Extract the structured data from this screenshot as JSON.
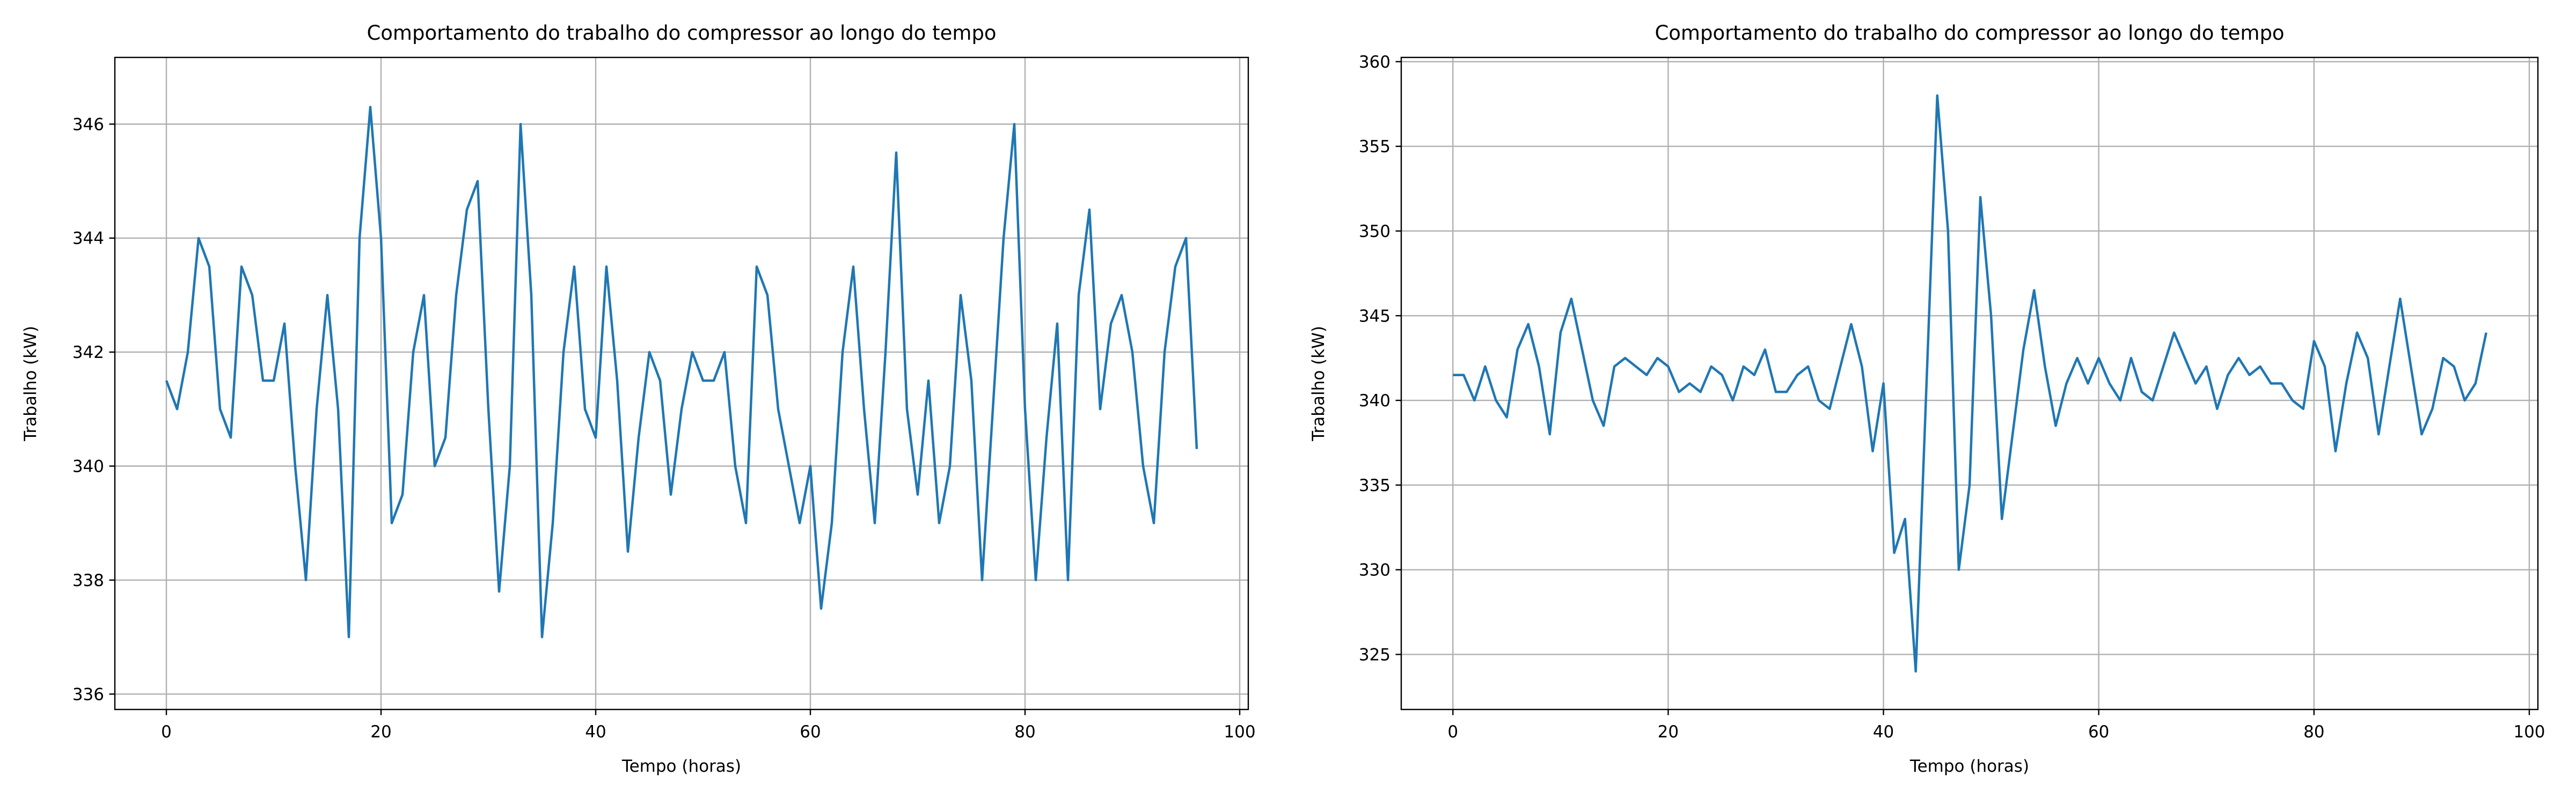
{
  "chart_data": [
    {
      "type": "line",
      "title": "Comportamento do trabalho do compressor ao longo do tempo",
      "xlabel": "Tempo (horas)",
      "ylabel": "Trabalho (kW)",
      "color": "#1f77b4",
      "grid": true,
      "xlim": [
        -4.8,
        100.8
      ],
      "ylim": [
        335.73,
        347.17
      ],
      "xticks": [
        0,
        20,
        40,
        60,
        80,
        100
      ],
      "yticks": [
        336,
        338,
        340,
        342,
        344,
        346
      ],
      "x": [
        0,
        1,
        2,
        3,
        4,
        5,
        6,
        7,
        8,
        9,
        10,
        11,
        12,
        13,
        14,
        15,
        16,
        17,
        18,
        19,
        20,
        21,
        22,
        23,
        24,
        25,
        26,
        27,
        28,
        29,
        30,
        31,
        32,
        33,
        34,
        35,
        36,
        37,
        38,
        39,
        40,
        41,
        42,
        43,
        44,
        45,
        46,
        47,
        48,
        49,
        50,
        51,
        52,
        53,
        54,
        55,
        56,
        57,
        58,
        59,
        60,
        61,
        62,
        63,
        64,
        65,
        66,
        67,
        68,
        69,
        70,
        71,
        72,
        73,
        74,
        75,
        76,
        77,
        78,
        79,
        80,
        81,
        82,
        83,
        84,
        85,
        86,
        87,
        88,
        89,
        90,
        91,
        92,
        93,
        94,
        95,
        96
      ],
      "values": [
        341.5,
        341,
        342,
        344,
        343.5,
        341,
        340.5,
        343.5,
        343,
        341.5,
        341.5,
        342.5,
        340,
        338,
        341,
        343,
        341,
        337,
        344,
        346.3,
        344,
        339,
        339.5,
        342,
        343,
        340,
        340.5,
        343,
        344.5,
        345,
        341,
        337.8,
        340,
        346,
        343,
        337,
        339,
        342,
        343.5,
        341,
        340.5,
        343.5,
        341.5,
        338.5,
        340.5,
        342,
        341.5,
        339.5,
        341,
        342,
        341.5,
        341.5,
        342,
        340,
        339,
        343.5,
        343,
        341,
        340,
        339,
        340,
        337.5,
        339,
        342,
        343.5,
        341,
        339,
        342,
        345.5,
        341,
        339.5,
        341.5,
        339,
        340,
        343,
        341.5,
        338,
        341,
        344,
        346,
        341,
        338,
        340.5,
        342.5,
        338,
        343,
        344.5,
        341,
        342.5,
        343,
        342,
        340,
        339,
        342,
        343.5,
        344,
        340.3
      ]
    },
    {
      "type": "line",
      "title": "Comportamento do trabalho do compressor ao longo do tempo",
      "xlabel": "Tempo (horas)",
      "ylabel": "Trabalho (kW)",
      "color": "#1f77b4",
      "grid": true,
      "xlim": [
        -4.8,
        100.8
      ],
      "ylim": [
        321.75,
        360.25
      ],
      "xticks": [
        0,
        20,
        40,
        60,
        80,
        100
      ],
      "yticks": [
        325,
        330,
        335,
        340,
        345,
        350,
        355,
        360
      ],
      "x": [
        0,
        1,
        2,
        3,
        4,
        5,
        6,
        7,
        8,
        9,
        10,
        11,
        12,
        13,
        14,
        15,
        16,
        17,
        18,
        19,
        20,
        21,
        22,
        23,
        24,
        25,
        26,
        27,
        28,
        29,
        30,
        31,
        32,
        33,
        34,
        35,
        36,
        37,
        38,
        39,
        40,
        41,
        42,
        43,
        44,
        45,
        46,
        47,
        48,
        49,
        50,
        51,
        52,
        53,
        54,
        55,
        56,
        57,
        58,
        59,
        60,
        61,
        62,
        63,
        64,
        65,
        66,
        67,
        68,
        69,
        70,
        71,
        72,
        73,
        74,
        75,
        76,
        77,
        78,
        79,
        80,
        81,
        82,
        83,
        84,
        85,
        86,
        87,
        88,
        89,
        90,
        91,
        92,
        93,
        94,
        95,
        96
      ],
      "values": [
        341.5,
        341.5,
        340,
        342,
        340,
        339,
        343,
        344.5,
        342,
        338,
        344,
        346,
        343,
        340,
        338.5,
        342,
        342.5,
        342,
        341.5,
        342.5,
        342,
        340.5,
        341,
        340.5,
        342,
        341.5,
        340,
        342,
        341.5,
        343,
        340.5,
        340.5,
        341.5,
        342,
        340,
        339.5,
        342,
        344.5,
        342,
        337,
        341,
        331,
        333,
        324,
        341,
        358,
        350,
        330,
        335,
        352,
        345,
        333,
        338,
        343,
        346.5,
        342,
        338.5,
        341,
        342.5,
        341,
        342.5,
        341,
        340,
        342.5,
        340.5,
        340,
        342,
        344,
        342.5,
        341,
        342,
        339.5,
        341.5,
        342.5,
        341.5,
        342,
        341,
        341,
        340,
        339.5,
        343.5,
        342,
        337,
        341,
        344,
        342.5,
        338,
        342,
        346,
        342,
        338,
        339.5,
        342.5,
        342,
        340,
        341,
        344
      ]
    }
  ]
}
